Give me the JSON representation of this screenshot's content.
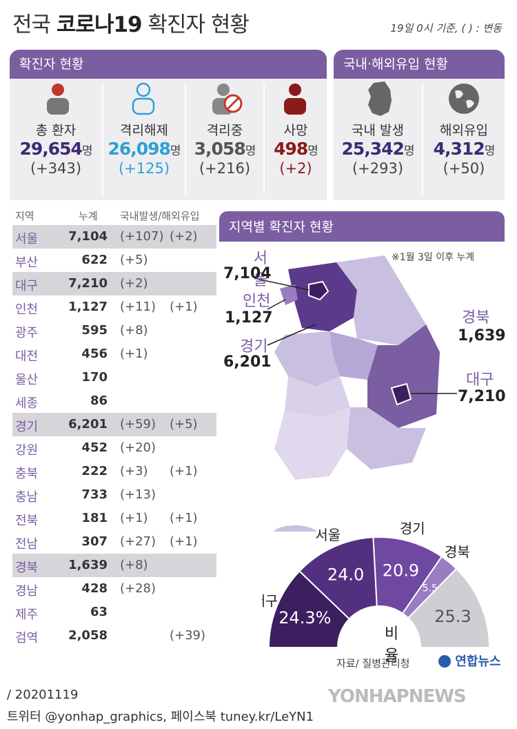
{
  "header": {
    "title_pre": "전국 ",
    "title_bold": "코로나19",
    "title_post": " 확진자 현황",
    "note": "19일 0시 기준, ( ) : 변동"
  },
  "status_panel": {
    "title": "확진자 현황",
    "unit": "명",
    "items": [
      {
        "label": "총 환자",
        "value": "29,654",
        "change": "(+343)",
        "color": "#3d2a73",
        "icon": "person-icon"
      },
      {
        "label": "격리해제",
        "value": "26,098",
        "change": "(+125)",
        "color": "#2e9fd8",
        "icon": "person-outline-icon"
      },
      {
        "label": "격리중",
        "value": "3,058",
        "change": "(+216)",
        "color": "#555555",
        "icon": "person-no-entry-icon"
      },
      {
        "label": "사망",
        "value": "498",
        "change": "(+2)",
        "color": "#8b1a1a",
        "icon": "person-dark-red-icon"
      }
    ]
  },
  "origin_panel": {
    "title": "국내·해외유입 현황",
    "unit": "명",
    "items": [
      {
        "label": "국내 발생",
        "value": "25,342",
        "change": "(+293)",
        "color": "#3d2a73",
        "icon": "korea-map-icon"
      },
      {
        "label": "해외유입",
        "value": "4,312",
        "change": "(+50)",
        "color": "#3d2a73",
        "icon": "globe-icon"
      }
    ]
  },
  "region_table": {
    "headers": [
      "지역",
      "누계",
      "국내발생/해외유입"
    ],
    "rows": [
      {
        "region": "서울",
        "total": "7,104",
        "domestic": "(+107)",
        "overseas": "(+2)",
        "shade": true
      },
      {
        "region": "부산",
        "total": "622",
        "domestic": "(+5)",
        "overseas": "",
        "shade": false
      },
      {
        "region": "대구",
        "total": "7,210",
        "domestic": "(+2)",
        "overseas": "",
        "shade": true
      },
      {
        "region": "인천",
        "total": "1,127",
        "domestic": "(+11)",
        "overseas": "(+1)",
        "shade": false
      },
      {
        "region": "광주",
        "total": "595",
        "domestic": "(+8)",
        "overseas": "",
        "shade": false
      },
      {
        "region": "대전",
        "total": "456",
        "domestic": "(+1)",
        "overseas": "",
        "shade": false
      },
      {
        "region": "울산",
        "total": "170",
        "domestic": "",
        "overseas": "",
        "shade": false
      },
      {
        "region": "세종",
        "total": "86",
        "domestic": "",
        "overseas": "",
        "shade": false
      },
      {
        "region": "경기",
        "total": "6,201",
        "domestic": "(+59)",
        "overseas": "(+5)",
        "shade": true
      },
      {
        "region": "강원",
        "total": "452",
        "domestic": "(+20)",
        "overseas": "",
        "shade": false
      },
      {
        "region": "충북",
        "total": "222",
        "domestic": "(+3)",
        "overseas": "(+1)",
        "shade": false
      },
      {
        "region": "충남",
        "total": "733",
        "domestic": "(+13)",
        "overseas": "",
        "shade": false
      },
      {
        "region": "전북",
        "total": "181",
        "domestic": "(+1)",
        "overseas": "(+1)",
        "shade": false
      },
      {
        "region": "전남",
        "total": "307",
        "domestic": "(+27)",
        "overseas": "(+1)",
        "shade": false
      },
      {
        "region": "경북",
        "total": "1,639",
        "domestic": "(+8)",
        "overseas": "",
        "shade": true
      },
      {
        "region": "경남",
        "total": "428",
        "domestic": "(+28)",
        "overseas": "",
        "shade": false
      },
      {
        "region": "제주",
        "total": "63",
        "domestic": "",
        "overseas": "",
        "shade": false
      },
      {
        "region": "검역",
        "total": "2,058",
        "domestic": "",
        "overseas": "(+39)",
        "shade": false
      }
    ]
  },
  "map_panel": {
    "title": "지역별 확진자 현황",
    "note": "※1월 3일 이후 누계",
    "labels": [
      {
        "name": "서울",
        "value": "7,104"
      },
      {
        "name": "인천",
        "value": "1,127"
      },
      {
        "name": "경기",
        "value": "6,201"
      },
      {
        "name": "경북",
        "value": "1,639"
      },
      {
        "name": "대구",
        "value": "7,210"
      }
    ]
  },
  "chart_data": {
    "type": "pie",
    "title": "비율",
    "categories": [
      "대구",
      "서울",
      "경기",
      "경북",
      ""
    ],
    "values": [
      24.3,
      24.0,
      20.9,
      5.5,
      25.3
    ],
    "value_labels": [
      "24.3",
      "24.0",
      "20.9",
      "5.5",
      "25.3"
    ],
    "unit": "%",
    "colors": [
      "#3c1f5e",
      "#52307f",
      "#6f48a2",
      "#9a7cc2",
      "#cfcfd3"
    ]
  },
  "source": "자료/ 질병관리청",
  "logo": "연합뉴스",
  "footer": {
    "date": "/ 20201119",
    "social": "트위터 @yonhap_graphics, 페이스북 tuney.kr/LeYN1"
  },
  "watermark": "YONHAPNEWS"
}
